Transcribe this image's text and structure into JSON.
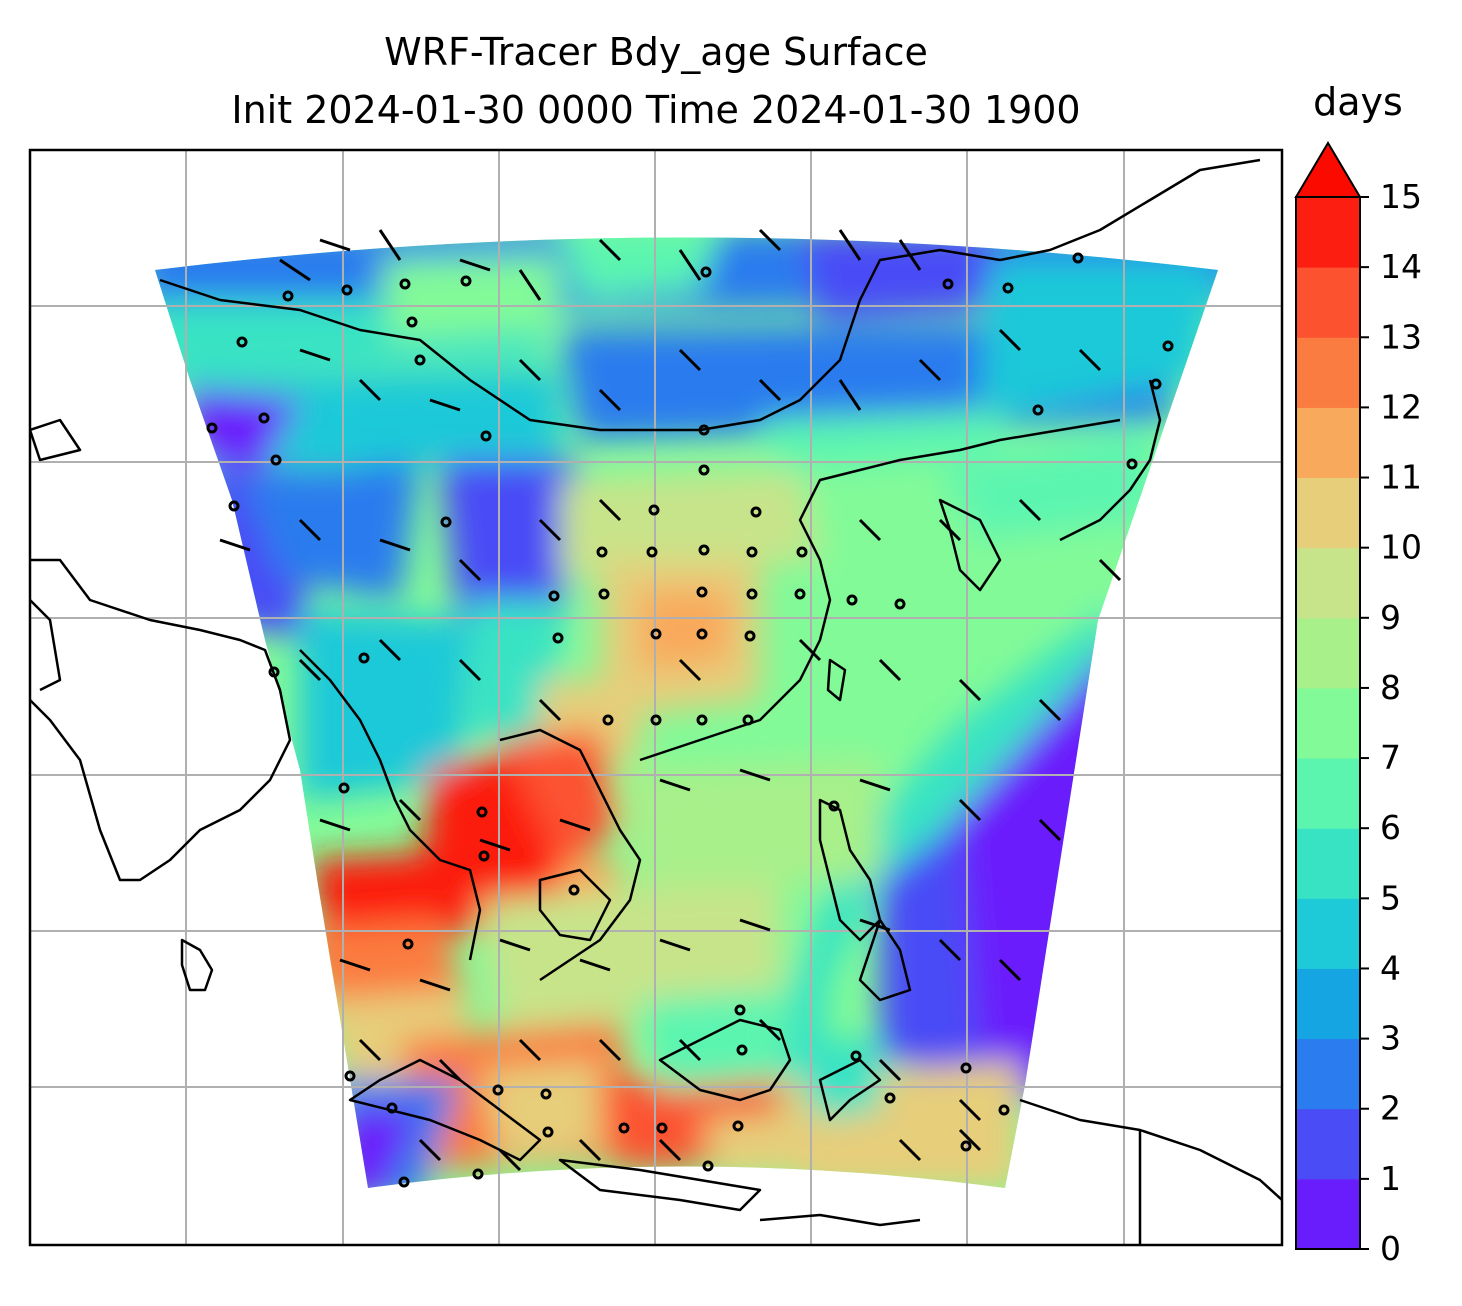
{
  "title": {
    "line1": "WRF-Tracer Bdy_age Surface",
    "line2": "Init 2024-01-30 0000 Time 2024-01-30 1900"
  },
  "colorbar": {
    "unit": "days",
    "ticks": [
      "0",
      "1",
      "2",
      "3",
      "4",
      "5",
      "6",
      "7",
      "8",
      "9",
      "10",
      "11",
      "12",
      "13",
      "14",
      "15"
    ],
    "extend": "max",
    "colors": [
      "#6a1dfc",
      "#4a4cf6",
      "#2b7cee",
      "#16a5e3",
      "#1ec9d8",
      "#38e3c4",
      "#5cf5b0",
      "#82fa98",
      "#a8f08a",
      "#c8e48a",
      "#e6ce7a",
      "#f9a95c",
      "#fb7c40",
      "#fc5230",
      "#fc1e10"
    ],
    "over_color": "#fb0a00"
  },
  "map": {
    "gridlines": true,
    "field_name": "Bdy_age"
  }
}
